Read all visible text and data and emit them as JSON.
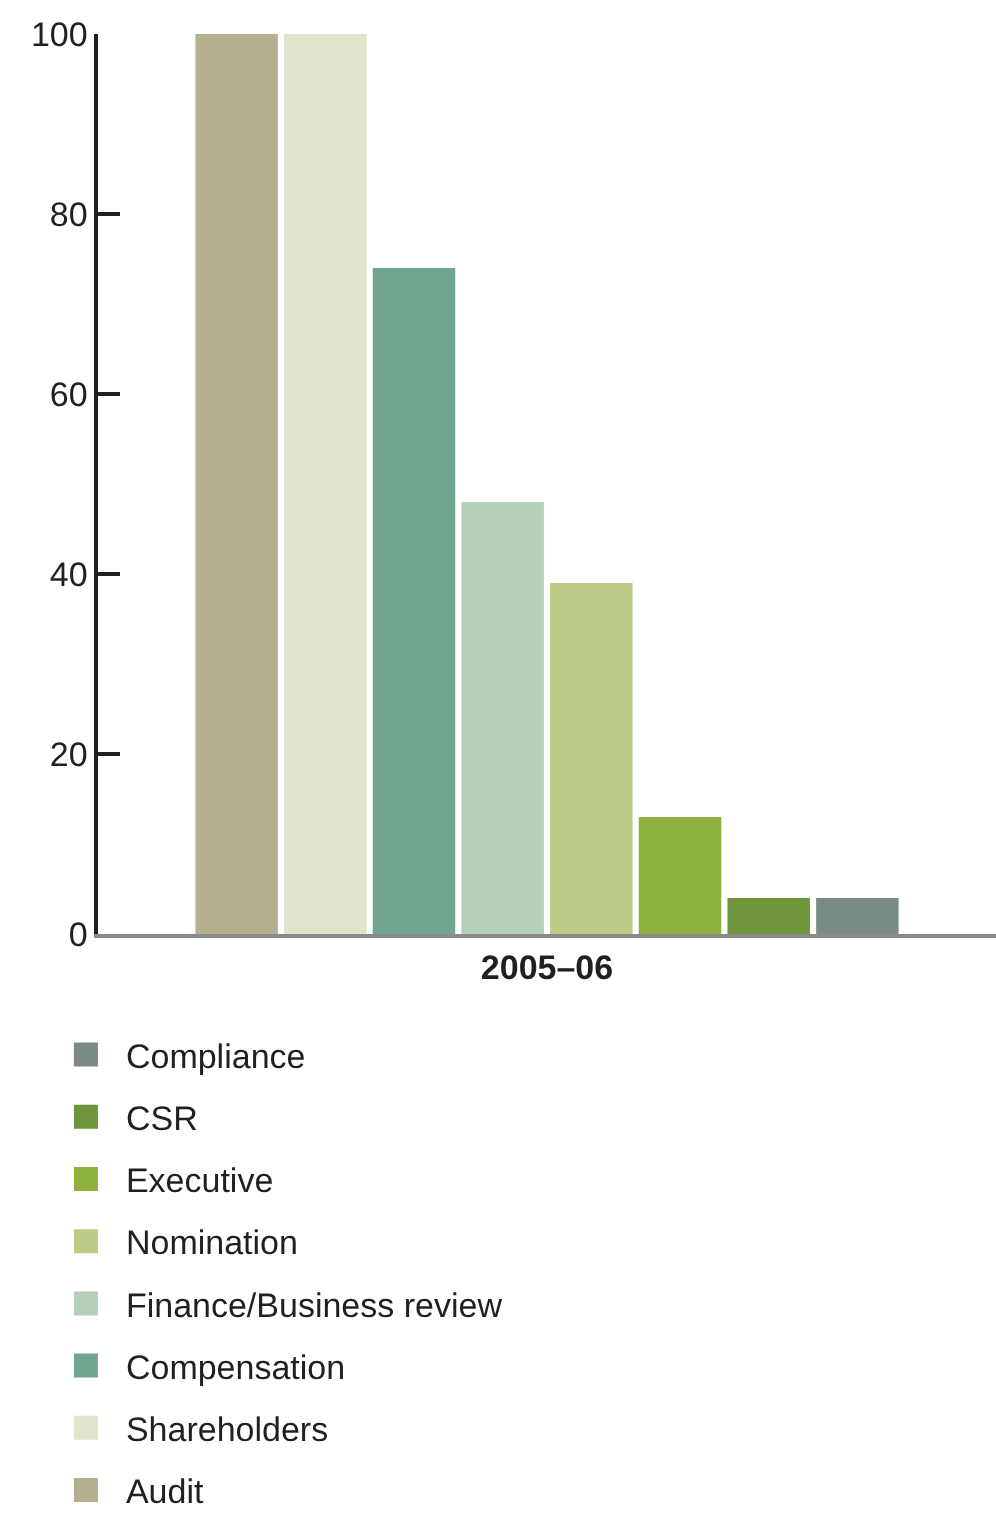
{
  "chart_data": {
    "type": "bar",
    "categories": [
      "2005–06"
    ],
    "series": [
      {
        "name": "Audit",
        "color": "#b4af8d",
        "values": [
          100
        ]
      },
      {
        "name": "Shareholders",
        "color": "#dfe5ca",
        "values": [
          100
        ]
      },
      {
        "name": "Compensation",
        "color": "#70a68f",
        "values": [
          74
        ]
      },
      {
        "name": "Finance/Business review",
        "color": "#b4cfba",
        "values": [
          48
        ]
      },
      {
        "name": "Nomination",
        "color": "#bbcb86",
        "values": [
          39
        ]
      },
      {
        "name": "Executive",
        "color": "#8db03e",
        "values": [
          13
        ]
      },
      {
        "name": "CSR",
        "color": "#6e943c",
        "values": [
          4
        ]
      },
      {
        "name": "Compliance",
        "color": "#7a8b83",
        "values": [
          4
        ]
      }
    ],
    "ylim": [
      0,
      100
    ],
    "yticks": [
      0,
      20,
      40,
      60,
      80,
      100
    ],
    "grid": false,
    "legend": "bottom"
  }
}
